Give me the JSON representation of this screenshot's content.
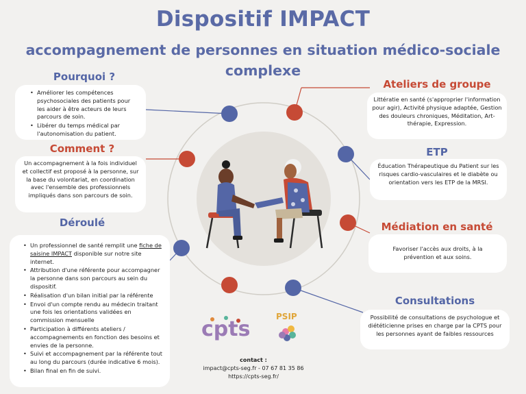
{
  "header": {
    "title": "Dispositif IMPACT",
    "subtitle": "accompagnement de personnes en situation médico-sociale complexe"
  },
  "pourquoi": {
    "heading": "Pourquoi ?",
    "items": [
      "Améliorer les compétences psychosociales des patients pour les aider à être acteurs de leurs parcours de soin.",
      "Libérer du temps médical par l'autonomisation du patient."
    ]
  },
  "comment": {
    "heading": "Comment ?",
    "text": "Un accompagnement à la fois individuel et collectif est proposé à la personne, sur la base du volontariat, en coordination avec l'ensemble des professionnels impliqués dans son parcours de soin."
  },
  "deroule": {
    "heading": "Déroulé",
    "item1_prefix": "Un professionnel de santé remplit une ",
    "item1_link": "fiche de saisine IMPACT",
    "item1_suffix": " disponible sur notre site internet.",
    "items": [
      "Attribution d'une référente pour accompagner la personne dans son parcours au sein du dispositif.",
      "Réalisation d'un bilan initial par la référente",
      "Envoi d'un compte rendu au médecin traitant une fois les orientations validées en commission mensuelle",
      "Participation à différents ateliers / accompagnements en fonction des besoins et envies de la personne.",
      "Suivi et accompagnement par la référente tout au long du parcours (durée indicative 6 mois).",
      "Bilan final en fin de suivi."
    ]
  },
  "ateliers": {
    "heading": "Ateliers de groupe",
    "text": "Littératie en santé (s'approprier l'information pour agir), Activité physique adaptée, Gestion des douleurs chroniques, Méditation, Art-thérapie, Expression."
  },
  "etp": {
    "heading": "ETP",
    "text": "Éducation Thérapeutique du Patient sur les risques cardio-vasculaires et le diabète ou orientation vers les ETP de la MRSI."
  },
  "mediation": {
    "heading": "Médiation en santé",
    "text": "Favoriser l'accès aux droits, à la prévention et aux soins."
  },
  "consultations": {
    "heading": "Consultations",
    "text": "Possibilité de consultations de psychologue et diététicienne prises en charge par la CPTS pour les personnes ayant de faibles ressources"
  },
  "logos": {
    "cpts": "cpts",
    "psip": "PSIP"
  },
  "contact": {
    "label": "contact :",
    "line1": "impact@cpts-seg.fr - 07 67 81 35 86",
    "line2": "https://cpts-seg.fr/"
  },
  "colors": {
    "blue": "#5466a6",
    "red": "#c64a35",
    "background": "#f2f1ef"
  }
}
